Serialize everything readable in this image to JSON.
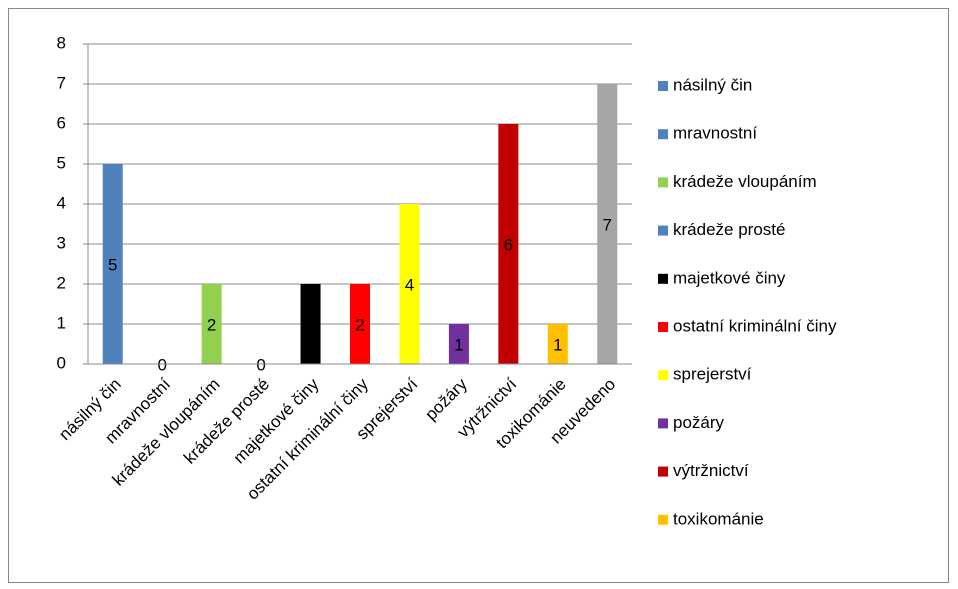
{
  "chart_data": {
    "type": "bar",
    "categories": [
      "násilný čin",
      "mravnostní",
      "krádeže vloupáním",
      "krádeže prosté",
      "majetkové činy",
      "ostatní kriminální činy",
      "sprejerství",
      "požáry",
      "výtržnictví",
      "toxikománie",
      "neuvedeno"
    ],
    "values": [
      5,
      0,
      2,
      0,
      2,
      2,
      4,
      1,
      6,
      1,
      7
    ],
    "colors": [
      "#4f81bd",
      "#4f81bd",
      "#92d050",
      "#4f81bd",
      "#000000",
      "#ff0000",
      "#ffff00",
      "#7030a0",
      "#c00000",
      "#ffc000",
      "#a6a6a6"
    ],
    "ylim": [
      0,
      8
    ],
    "yticks": [
      0,
      1,
      2,
      3,
      4,
      5,
      6,
      7,
      8
    ],
    "grid": true,
    "data_labels": true,
    "legend": {
      "position": "right",
      "entries": [
        "násilný čin",
        "mravnostní",
        "krádeže vloupáním",
        "krádeže prosté",
        "majetkové činy",
        "ostatní kriminální činy",
        "sprejerství",
        "požáry",
        "výtržnictví",
        "toxikománie"
      ],
      "colors": [
        "#4f81bd",
        "#4f81bd",
        "#92d050",
        "#4f81bd",
        "#000000",
        "#ff0000",
        "#ffff00",
        "#7030a0",
        "#c00000",
        "#ffc000"
      ]
    }
  }
}
